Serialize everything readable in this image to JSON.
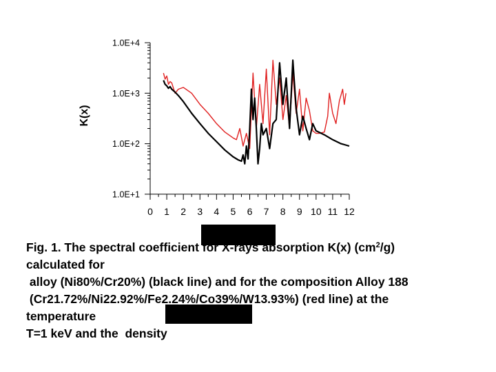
{
  "chart_data": {
    "type": "line",
    "title": "",
    "xlabel": "",
    "ylabel": "K(x)",
    "xlim": [
      0,
      12
    ],
    "ylim": [
      10,
      10000
    ],
    "y_scale": "log",
    "x_ticks": [
      "0",
      "1",
      "2",
      "3",
      "4",
      "5",
      "6",
      "7",
      "8",
      "9",
      "10",
      "11",
      "12"
    ],
    "y_ticks": [
      "1.0E+1",
      "1.0E+2",
      "1.0E+3",
      "1.0E+4"
    ],
    "grid": false,
    "series": [
      {
        "color": "#000000",
        "x": [
          0.8,
          0.9,
          1.0,
          1.1,
          1.2,
          1.3,
          1.5,
          1.7,
          2.0,
          2.5,
          3.0,
          3.5,
          4.0,
          4.5,
          5.0,
          5.3,
          5.5,
          5.6,
          5.7,
          5.8,
          5.9,
          6.0,
          6.1,
          6.2,
          6.3,
          6.4,
          6.5,
          6.6,
          6.7,
          6.8,
          7.0,
          7.2,
          7.4,
          7.6,
          7.8,
          8.0,
          8.2,
          8.4,
          8.6,
          8.8,
          9.0,
          9.2,
          9.4,
          9.6,
          9.8,
          10.0,
          10.5,
          11.0,
          11.5,
          12.0
        ],
        "y": [
          1800,
          1500,
          1400,
          1250,
          1350,
          1200,
          1050,
          900,
          680,
          400,
          250,
          160,
          110,
          75,
          55,
          48,
          45,
          60,
          40,
          90,
          50,
          200,
          1200,
          300,
          800,
          200,
          40,
          80,
          250,
          150,
          200,
          80,
          250,
          300,
          4000,
          600,
          2000,
          200,
          4500,
          500,
          150,
          350,
          200,
          120,
          250,
          180,
          150,
          120,
          100,
          90
        ]
      },
      {
        "color": "#e02020",
        "x": [
          0.8,
          0.9,
          1.0,
          1.1,
          1.2,
          1.3,
          1.5,
          1.7,
          2.0,
          2.5,
          3.0,
          3.5,
          4.0,
          4.5,
          5.0,
          5.2,
          5.4,
          5.6,
          5.8,
          6.0,
          6.2,
          6.4,
          6.6,
          6.8,
          7.0,
          7.2,
          7.4,
          7.6,
          7.8,
          8.0,
          8.2,
          8.4,
          8.6,
          8.8,
          9.0,
          9.2,
          9.4,
          9.6,
          9.8,
          10.0,
          10.2,
          10.5,
          10.7,
          10.8,
          11.0,
          11.2,
          11.4,
          11.6,
          11.7,
          11.8
        ],
        "y": [
          2500,
          1900,
          2200,
          1500,
          1700,
          1600,
          1000,
          1200,
          1300,
          1000,
          600,
          400,
          250,
          170,
          130,
          120,
          200,
          90,
          160,
          80,
          2500,
          200,
          1500,
          250,
          3000,
          150,
          4500,
          600,
          2000,
          300,
          900,
          200,
          2500,
          400,
          1200,
          180,
          800,
          450,
          180,
          160,
          160,
          170,
          350,
          1000,
          400,
          250,
          700,
          1200,
          600,
          1000
        ]
      }
    ]
  },
  "caption": {
    "line1_a": "Fig. 1. The spectral coefficient for X-rays absorption K(x) (cm",
    "line1_sup": "2",
    "line1_b": "/g)",
    "line2": "calculated for",
    "line3": " alloy (Ni80%/Cr20%) (black line) and for the composition Alloy 188",
    "line4": " (Cr21.72%/Ni22.92%/Fe2.24%/Co39%/W13.93%) (red line) at the",
    "line5": "temperature",
    "line6": "T=1 keV and the  density"
  }
}
